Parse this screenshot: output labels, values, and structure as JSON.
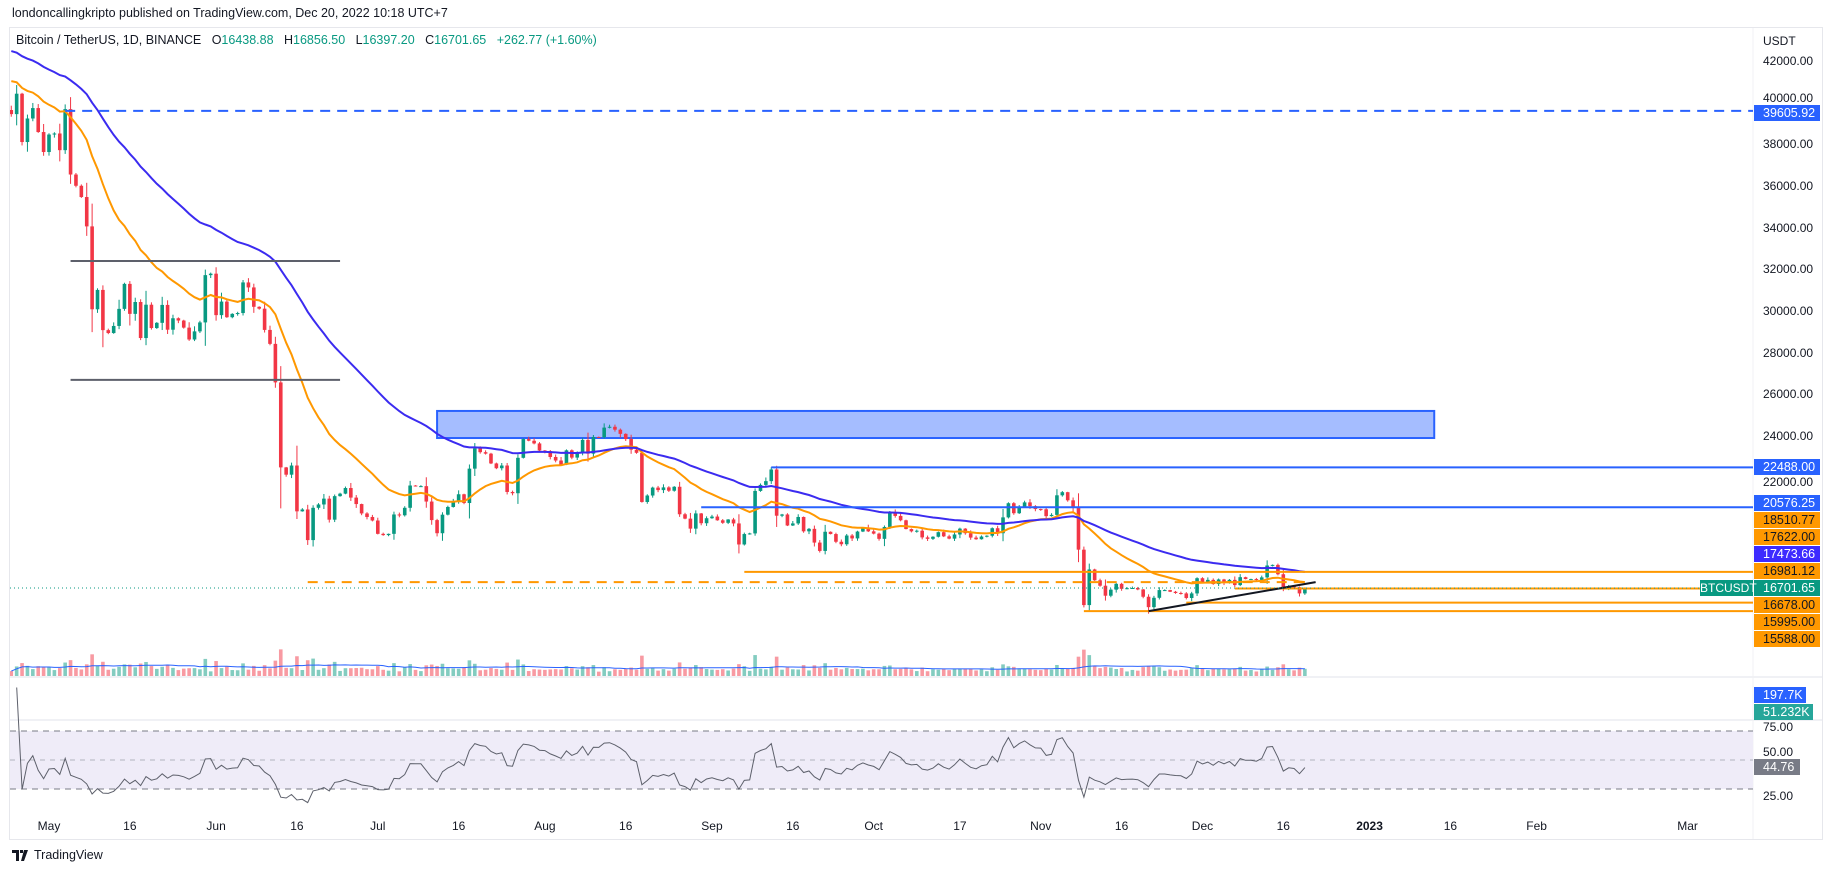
{
  "header": {
    "published": "londoncallingkripto published on TradingView.com, Dec 20, 2022 10:18 UTC+7"
  },
  "legend": {
    "symbol": "Bitcoin / TetherUS, 1D, BINANCE",
    "open_label": "O",
    "open": "16438.88",
    "high_label": "H",
    "high": "16856.50",
    "low_label": "L",
    "low": "16397.20",
    "close_label": "C",
    "close": "16701.65",
    "change": "+262.77 (+1.60%)"
  },
  "price_axis": {
    "unit": "USDT",
    "ticks": [
      "42000.00",
      "40000.00",
      "38000.00",
      "36000.00",
      "34000.00",
      "32000.00",
      "30000.00",
      "28000.00",
      "26000.00",
      "24000.00",
      "22000.00"
    ],
    "labels": [
      {
        "text": "39605.92",
        "color": "#2962ff",
        "fg": "#ffffff"
      },
      {
        "text": "22488.00",
        "color": "#2962ff",
        "fg": "#ffffff"
      },
      {
        "text": "20576.25",
        "color": "#2962ff",
        "fg": "#ffffff"
      },
      {
        "text": "18510.77",
        "color": "#ff9800",
        "fg": "#131722"
      },
      {
        "text": "17622.00",
        "color": "#ff9800",
        "fg": "#131722"
      },
      {
        "text": "17473.66",
        "color": "#3d2bff",
        "fg": "#ffffff"
      },
      {
        "text": "16981.12",
        "color": "#ff9800",
        "fg": "#131722"
      },
      {
        "text": "16701.65",
        "color": "#089981",
        "fg": "#ffffff"
      },
      {
        "text": "16678.00",
        "color": "#ff9800",
        "fg": "#131722"
      },
      {
        "text": "15995.00",
        "color": "#ff9800",
        "fg": "#131722"
      },
      {
        "text": "15588.00",
        "color": "#ff9800",
        "fg": "#131722"
      }
    ],
    "symbol_tag": "BTCUSDT"
  },
  "volume_pane": {
    "labels": [
      {
        "text": "197.7K",
        "color": "#2962ff"
      },
      {
        "text": "51.232K",
        "color": "#26a69a"
      }
    ]
  },
  "rsi_pane": {
    "ticks": [
      "75.00",
      "50.00",
      "25.00"
    ],
    "value": "44.76",
    "value_color": "#787b86",
    "band": [
      30,
      70
    ]
  },
  "time_axis": {
    "labels": [
      {
        "t": "May",
        "d": 0
      },
      {
        "t": "16",
        "d": 15
      },
      {
        "t": "Jun",
        "d": 31
      },
      {
        "t": "16",
        "d": 46
      },
      {
        "t": "Jul",
        "d": 61
      },
      {
        "t": "16",
        "d": 76
      },
      {
        "t": "Aug",
        "d": 92
      },
      {
        "t": "16",
        "d": 107
      },
      {
        "t": "Sep",
        "d": 123
      },
      {
        "t": "16",
        "d": 138
      },
      {
        "t": "Oct",
        "d": 153
      },
      {
        "t": "17",
        "d": 169
      },
      {
        "t": "Nov",
        "d": 184
      },
      {
        "t": "16",
        "d": 199
      },
      {
        "t": "Dec",
        "d": 214
      },
      {
        "t": "16",
        "d": 229
      },
      {
        "t": "2023",
        "d": 245
      },
      {
        "t": "16",
        "d": 260
      },
      {
        "t": "Feb",
        "d": 276
      },
      {
        "t": "Mar",
        "d": 304
      }
    ]
  },
  "footer": {
    "brand": "TradingView"
  },
  "colors": {
    "up": "#089981",
    "down": "#f23645",
    "ema_fast": "#ff9800",
    "ema_slow": "#3b2bf0",
    "accent": "#2962ff"
  },
  "chart_data": {
    "type": "candlestick",
    "title": "Bitcoin / TetherUS, 1D, BINANCE",
    "x_start": "2022-04-24",
    "x_unit": "day index from 2022-05-01",
    "ylim": [
      14000,
      42000
    ],
    "closes": [
      39450,
      40430,
      38110,
      39240,
      39740,
      38590,
      37630,
      38470,
      38520,
      37720,
      39690,
      36550,
      36010,
      35470,
      34060,
      30080,
      31010,
      29080,
      28940,
      29280,
      30100,
      31300,
      29860,
      30430,
      28700,
      30300,
      29180,
      29430,
      30290,
      29100,
      29650,
      29540,
      29200,
      28630,
      29020,
      29450,
      31720,
      31790,
      29800,
      30450,
      29700,
      29860,
      29900,
      31370,
      31130,
      30200,
      30110,
      29090,
      28420,
      26570,
      22490,
      22140,
      22580,
      20380,
      20470,
      19000,
      20550,
      20710,
      20990,
      19980,
      21110,
      21230,
      21500,
      21040,
      20730,
      20280,
      20110,
      19940,
      19300,
      19240,
      19300,
      20230,
      20190,
      20550,
      21620,
      21590,
      21590,
      20850,
      19960,
      19330,
      20220,
      20590,
      20830,
      21200,
      20780,
      22430,
      23400,
      23220,
      23150,
      22680,
      22450,
      22580,
      21310,
      21250,
      22950,
      23850,
      23770,
      23640,
      23300,
      23270,
      22990,
      22820,
      22620,
      23310,
      22960,
      23170,
      23810,
      23150,
      23950,
      23940,
      24400,
      24440,
      24300,
      24100,
      23850,
      23340,
      23190,
      20830,
      21140,
      21520,
      21400,
      21530,
      21370,
      21560,
      20240,
      20030,
      19550,
      20280,
      19810,
      20050,
      20130,
      19950,
      19830,
      19990,
      19800,
      18790,
      19290,
      19320,
      21360,
      21650,
      21830,
      22390,
      20170,
      20230,
      19700,
      19800,
      20110,
      19420,
      19540,
      18880,
      18480,
      19400,
      19290,
      18920,
      18800,
      19220,
      19080,
      19410,
      19590,
      19420,
      19310,
      19060,
      19630,
      20340,
      20160,
      19950,
      19530,
      19420,
      19450,
      19130,
      19060,
      19160,
      19380,
      19180,
      19070,
      19270,
      19550,
      19330,
      19120,
      19040,
      19170,
      19210,
      19570,
      19330,
      20090,
      20770,
      20290,
      20600,
      20810,
      20630,
      20490,
      20480,
      20150,
      20210,
      21150,
      21300,
      20910,
      20590,
      18540,
      15880,
      17590,
      17070,
      16810,
      16330,
      16620,
      16900,
      16660,
      16690,
      16700,
      16630,
      16280,
      15780,
      16230,
      16600,
      16600,
      16520,
      16460,
      16440,
      16220,
      16440,
      17170,
      16980,
      17090,
      16890,
      17110,
      16970,
      17090,
      16840,
      17220,
      17130,
      17130,
      17090,
      17210,
      17780,
      17810,
      17360,
      16630,
      16780,
      16740,
      16440,
      16701.65
    ],
    "indicators": [
      "EMA fast (orange)",
      "EMA slow (blue)",
      "Volume",
      "RSI 14"
    ],
    "drawings": [
      {
        "type": "hline",
        "price": 39605.92,
        "from_d": 3,
        "style": "dashed",
        "color": "#2962ff"
      },
      {
        "type": "segment",
        "price": 32400,
        "from_d": 4,
        "to_d": 54,
        "color": "#5d606b"
      },
      {
        "type": "segment",
        "price": 26690,
        "from_d": 4,
        "to_d": 54,
        "color": "#5d606b"
      },
      {
        "type": "rect",
        "top": 25200,
        "bottom": 23900,
        "from_d": 72,
        "to_d": 257,
        "color": "#2962ff"
      },
      {
        "type": "hline",
        "price": 22488,
        "from_d": 134,
        "style": "solid",
        "color": "#2962ff"
      },
      {
        "type": "hline",
        "price": 20576.25,
        "from_d": 121,
        "style": "solid",
        "color": "#2962ff"
      },
      {
        "type": "hline",
        "price": 17473.66,
        "from_d": 129,
        "style": "solid",
        "color": "#ff9800"
      },
      {
        "type": "segment",
        "price": 16981.12,
        "from_d": 48,
        "to_d": 234,
        "style": "dashed",
        "color": "#ff9800"
      },
      {
        "type": "hline",
        "price": 16678,
        "from_d": 220,
        "style": "solid",
        "color": "#ff9800"
      },
      {
        "type": "hline",
        "price": 15995,
        "from_d": 211,
        "style": "solid",
        "color": "#ff9800"
      },
      {
        "type": "hline",
        "price": 15588,
        "from_d": 192,
        "style": "solid",
        "color": "#ff9800"
      },
      {
        "type": "trend",
        "p1": 15588,
        "d1": 204,
        "p2": 16981,
        "d2": 235,
        "color": "#131722"
      }
    ]
  }
}
